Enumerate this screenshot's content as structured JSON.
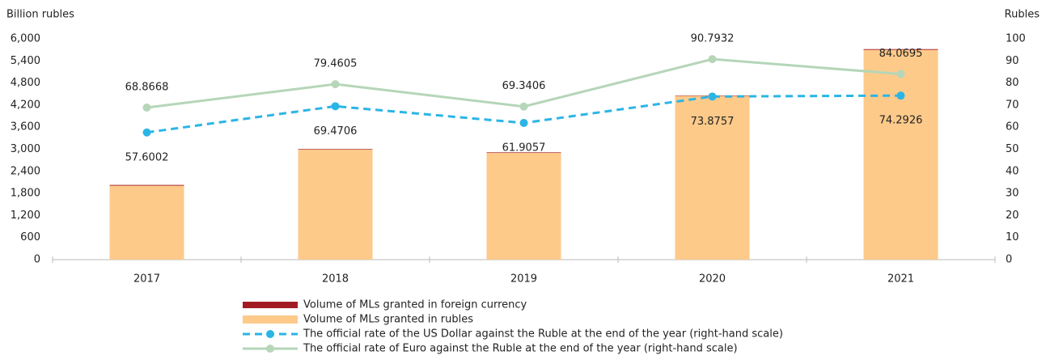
{
  "chart_data": {
    "type": "bar",
    "y_label": "Billion rubles",
    "y2_label": "Rubles",
    "categories": [
      "2017",
      "2018",
      "2019",
      "2020",
      "2021"
    ],
    "series": [
      {
        "name": "Volume of MLs granted in foreign currency",
        "type": "bar",
        "stack": true,
        "color": "#a31b22",
        "values": [
          20,
          15,
          15,
          10,
          20
        ]
      },
      {
        "name": "Volume of MLs granted in rubles",
        "type": "bar",
        "stack": true,
        "color": "#fdca8a",
        "values": [
          2010,
          2990,
          2900,
          4450,
          5700
        ]
      },
      {
        "name": "The official rate of the US Dollar against the Ruble at the end of the year (right-hand scale)",
        "type": "line",
        "axis": "y2",
        "line_style": "dashed",
        "label_position": "below",
        "color": "#2bb5e6",
        "values": [
          57.6002,
          69.4706,
          61.9057,
          73.8757,
          74.2926
        ]
      },
      {
        "name": "The official rate of Euro against the Ruble at the end of the year (right-hand scale)",
        "type": "line",
        "axis": "y2",
        "line_style": "solid",
        "label_position": "above",
        "color": "#b5d6b8",
        "values": [
          68.8668,
          79.4605,
          69.3406,
          90.7932,
          84.0695
        ]
      }
    ],
    "ylim": [
      0,
      6000
    ],
    "yticks": [
      0,
      600,
      {
        "value": 1200,
        "label": "1,200"
      },
      {
        "value": 1800,
        "label": "1,800"
      },
      {
        "value": 2400,
        "label": "2,400"
      },
      {
        "value": 3000,
        "label": "3,000"
      },
      {
        "value": 3600,
        "label": "3,600"
      },
      {
        "value": 4200,
        "label": "4,200"
      },
      {
        "value": 4800,
        "label": "4,800"
      },
      {
        "value": 5400,
        "label": "5,400"
      },
      {
        "value": 6000,
        "label": "6,000"
      }
    ],
    "y2lim": [
      0,
      100
    ],
    "y2ticks": [
      0,
      10,
      20,
      30,
      40,
      50,
      60,
      70,
      80,
      90,
      100
    ],
    "grid": false,
    "legend": "bottom"
  }
}
